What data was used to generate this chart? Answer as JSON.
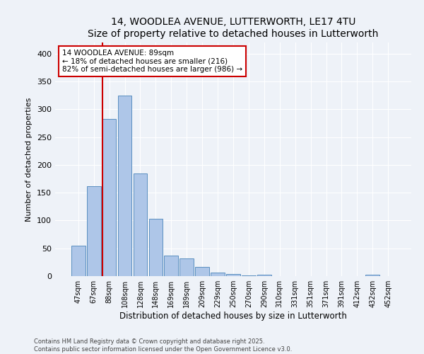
{
  "title1": "14, WOODLEA AVENUE, LUTTERWORTH, LE17 4TU",
  "title2": "Size of property relative to detached houses in Lutterworth",
  "xlabel": "Distribution of detached houses by size in Lutterworth",
  "ylabel": "Number of detached properties",
  "bar_labels": [
    "47sqm",
    "67sqm",
    "88sqm",
    "108sqm",
    "128sqm",
    "148sqm",
    "169sqm",
    "189sqm",
    "209sqm",
    "229sqm",
    "250sqm",
    "270sqm",
    "290sqm",
    "310sqm",
    "331sqm",
    "351sqm",
    "371sqm",
    "391sqm",
    "412sqm",
    "432sqm",
    "452sqm"
  ],
  "bar_values": [
    55,
    162,
    283,
    325,
    185,
    103,
    37,
    32,
    16,
    7,
    4,
    1,
    3,
    0,
    0,
    0,
    0,
    0,
    0,
    3,
    0
  ],
  "bar_color": "#aec6e8",
  "bar_edge_color": "#5a8fc0",
  "vline_x": 1.575,
  "vline_color": "#cc0000",
  "annotation_text": "14 WOODLEA AVENUE: 89sqm\n← 18% of detached houses are smaller (216)\n82% of semi-detached houses are larger (986) →",
  "annotation_box_color": "#ffffff",
  "annotation_box_edge": "#cc0000",
  "ylim": [
    0,
    420
  ],
  "yticks": [
    0,
    50,
    100,
    150,
    200,
    250,
    300,
    350,
    400
  ],
  "footer1": "Contains HM Land Registry data © Crown copyright and database right 2025.",
  "footer2": "Contains public sector information licensed under the Open Government Licence v3.0.",
  "bg_color": "#eef2f8",
  "plot_bg_color": "#eef2f8",
  "title_fontsize": 10,
  "subtitle_fontsize": 9
}
